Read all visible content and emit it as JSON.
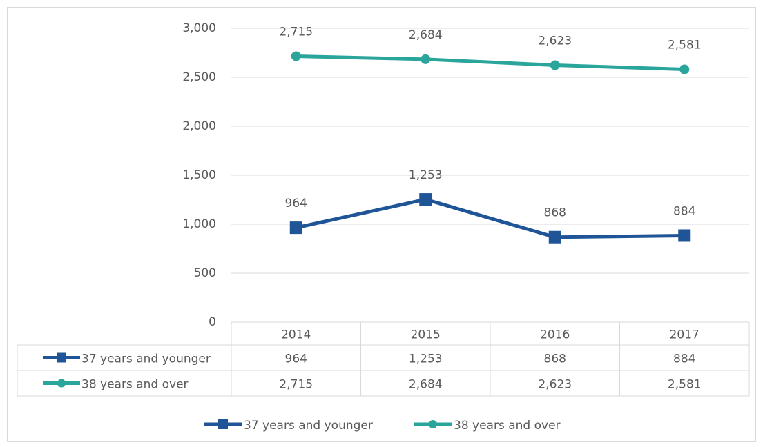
{
  "chart_data": {
    "type": "line",
    "categories": [
      "2014",
      "2015",
      "2016",
      "2017"
    ],
    "series": [
      {
        "name": "37 years and younger",
        "color": "#1f5597",
        "marker": "square",
        "values": [
          964,
          1253,
          868,
          884
        ],
        "value_labels": [
          "964",
          "1,253",
          "868",
          "884"
        ]
      },
      {
        "name": "38 years and over",
        "color": "#2aa59c",
        "marker": "circle",
        "values": [
          2715,
          2684,
          2623,
          2581
        ],
        "value_labels": [
          "2,715",
          "2,684",
          "2,623",
          "2,581"
        ]
      }
    ],
    "ylim": [
      0,
      3000
    ],
    "yticks": [
      0,
      {
        "value": 500,
        "label": "500"
      },
      {
        "value": 1000,
        "label": "1,000"
      },
      {
        "value": 1500,
        "label": "1,500"
      },
      {
        "value": 2000,
        "label": "2,000"
      },
      {
        "value": 2500,
        "label": "2,500"
      },
      {
        "value": 3000,
        "label": "3,000"
      }
    ],
    "grid": true,
    "data_table": true,
    "legend": "bottom"
  }
}
